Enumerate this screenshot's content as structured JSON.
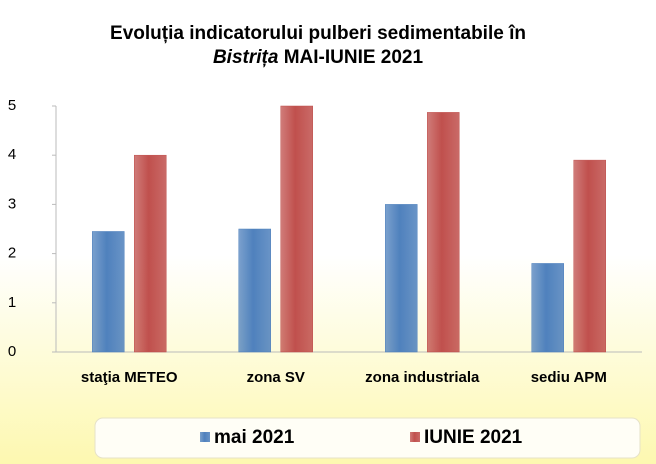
{
  "chart_data": {
    "type": "bar",
    "title": [
      "Evoluția indicatorului pulberi sedimentabile în",
      "Bistrița",
      "MAI-IUNIE 2021"
    ],
    "categories": [
      "staţia METEO",
      "zona SV",
      "zona industriala",
      "sediu APM"
    ],
    "series": [
      {
        "name": "mai 2021",
        "color": "#4f81bd",
        "values": [
          2.45,
          2.5,
          3.0,
          1.8
        ]
      },
      {
        "name": "IUNIE 2021",
        "color": "#c0504d",
        "values": [
          4.0,
          5.0,
          4.87,
          3.9
        ]
      }
    ],
    "ylim": [
      0,
      5
    ],
    "yticks": [
      0,
      1,
      2,
      3,
      4,
      5
    ],
    "grid": false,
    "legend": "bottom"
  }
}
